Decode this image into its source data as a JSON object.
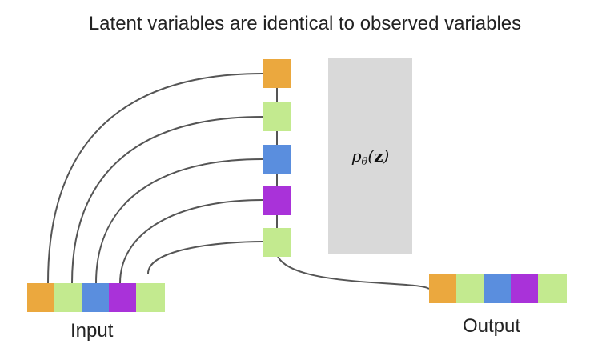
{
  "title": "Latent variables are identical to observed variables",
  "input_label": "Input",
  "output_label": "Output",
  "prior_box": {
    "label": "pθ(z)",
    "color": "#d9d9d9"
  },
  "colors": [
    "#eba83e",
    "#c3ea8f",
    "#5a8ede",
    "#a932d9",
    "#c3ea8f"
  ],
  "line_color": "#555555"
}
